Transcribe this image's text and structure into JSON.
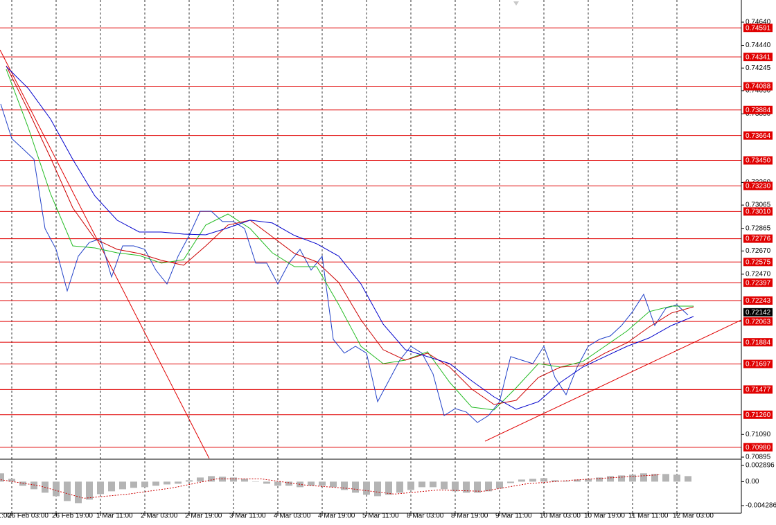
{
  "chart_data": [
    {
      "type": "line",
      "categories": [
        "1:00",
        "26 Feb 03:00",
        "26 Feb 19:00",
        "1 Mar 11:00",
        "2 Mar 03:00",
        "2 Mar 19:00",
        "3 Mar 11:00",
        "4 Mar 03:00",
        "4 Mar 19:00",
        "5 Mar 11:00",
        "8 Mar 03:00",
        "8 Mar 19:00",
        "9 Mar 11:00",
        "10 Mar 03:00",
        "10 Mar 19:00",
        "11 Mar 11:00",
        "12 Mar 03:00"
      ],
      "series": [
        {
          "color": "#2040c8",
          "values": [
            [
              null,
              null,
              0.73936,
              0.73638
            ],
            [
              0.73549,
              0.73459,
              0.72863,
              0.72684
            ],
            [
              0.72326,
              0.72625,
              0.72744,
              0.72774
            ],
            [
              0.72446,
              0.72714,
              0.72714,
              0.72684
            ],
            [
              0.72505,
              0.72386,
              0.72625,
              0.72803
            ],
            [
              0.73012,
              0.73012,
              0.72923,
              0.72923
            ],
            [
              0.72863,
              0.72565,
              0.72565,
              0.72386
            ],
            [
              0.72565,
              0.72684,
              0.72505,
              0.72625
            ],
            [
              0.71909,
              0.7179,
              0.71849,
              0.7179
            ],
            [
              0.71372,
              0.71551,
              0.7173,
              0.71849
            ],
            [
              0.7179,
              0.71611,
              0.71253,
              0.71313
            ],
            [
              0.71283,
              0.71193,
              0.71253,
              0.71372
            ],
            [
              0.7176,
              0.7173,
              0.717,
              0.71849
            ],
            [
              0.71581,
              0.71432,
              0.7167,
              0.71849
            ],
            [
              0.71909,
              0.71939,
              0.72028,
              0.72148
            ],
            [
              0.72297,
              0.72028,
              0.72177,
              0.72207
            ],
            [
              0.72118,
              null,
              null,
              null
            ]
          ]
        },
        {
          "color": "#22bb22",
          "values": [
            [
              null,
              0.74235
            ],
            [
              0.73728,
              0.73161
            ],
            [
              0.72714,
              0.72696
            ],
            [
              0.72654,
              0.72631
            ],
            [
              0.72565,
              0.72595
            ],
            [
              0.72893,
              0.72988
            ],
            [
              0.72863,
              0.72654
            ],
            [
              0.72535,
              0.72535
            ],
            [
              0.72207,
              0.71849
            ],
            [
              0.717,
              0.7173
            ],
            [
              0.71802,
              0.71539
            ],
            [
              0.71325,
              0.71301
            ],
            [
              0.71492,
              0.717
            ],
            [
              0.7167,
              0.71718
            ],
            [
              0.71849,
              0.71981
            ],
            [
              0.72148,
              0.72195
            ],
            [
              0.72195,
              null
            ]
          ]
        },
        {
          "color": "#cc0000",
          "values": [
            [
              null,
              0.74264
            ],
            [
              0.73877,
              0.73471
            ],
            [
              0.73042,
              0.72774
            ],
            [
              0.72684,
              0.72648
            ],
            [
              0.72589,
              0.72547
            ],
            [
              0.72714,
              0.72893
            ],
            [
              0.72935,
              0.72792
            ],
            [
              0.72648,
              0.72577
            ],
            [
              0.72398,
              0.72076
            ],
            [
              0.7182,
              0.7173
            ],
            [
              0.7179,
              0.7167
            ],
            [
              0.7148,
              0.71348
            ],
            [
              0.71384,
              0.71581
            ],
            [
              0.7167,
              0.71682
            ],
            [
              0.7179,
              0.71879
            ],
            [
              0.72016,
              0.72136
            ],
            [
              0.72189,
              null
            ]
          ]
        },
        {
          "color": "#0000cc",
          "values": [
            [
              null,
              0.74258
            ],
            [
              0.74068,
              0.73805
            ],
            [
              0.73459,
              0.73143
            ],
            [
              0.72935,
              0.72833
            ],
            [
              0.72833,
              0.72815
            ],
            [
              0.72809,
              0.72869
            ],
            [
              0.72935,
              0.72911
            ],
            [
              0.72803,
              0.72732
            ],
            [
              0.72625,
              0.72386
            ],
            [
              0.7204,
              0.7182
            ],
            [
              0.7176,
              0.717
            ],
            [
              0.71551,
              0.71414
            ],
            [
              0.71307,
              0.71372
            ],
            [
              0.71539,
              0.7167
            ],
            [
              0.7176,
              0.71849
            ],
            [
              0.71921,
              0.72028
            ],
            [
              0.72106,
              null
            ]
          ]
        }
      ],
      "ylim": [
        0.70883,
        0.74801
      ],
      "yticks": [
        {
          "value": 0.7464,
          "label": "0.74640"
        },
        {
          "value": 0.7444,
          "label": "0.74440"
        },
        0.74245,
        {
          "value": 0.7405,
          "label": "0.74050"
        },
        {
          "value": 0.7385,
          "label": "0.73850"
        },
        {
          "value": 0.7326,
          "label": "0.73260"
        },
        0.73065,
        0.72865,
        {
          "value": 0.7267,
          "label": "0.72670"
        },
        {
          "value": 0.7247,
          "label": "0.72470"
        },
        {
          "value": 0.7109,
          "label": "0.71090"
        },
        0.70895
      ],
      "levels": [
        0.74591,
        0.74341,
        0.74088,
        0.73884,
        0.73664,
        {
          "value": 0.7345,
          "label": "0.73450"
        },
        {
          "value": 0.7323,
          "label": "0.73230"
        },
        {
          "value": 0.7301,
          "label": "0.73010"
        },
        0.72776,
        0.72575,
        0.72397,
        0.72243,
        0.72063,
        0.71884,
        0.71697,
        0.71477,
        {
          "value": 0.7126,
          "label": "0.71260"
        },
        {
          "value": 0.7098,
          "label": "0.70980"
        }
      ],
      "level_color": "#e00000",
      "last_price": 0.72142,
      "last_price_color": "#000000",
      "grid": true
    },
    {
      "type": "bar",
      "color": "#b4b4b4",
      "values": [
        [
          null,
          null,
          0.00149,
          0.0005
        ],
        [
          -0.00074,
          -0.00136,
          -0.00198,
          -0.0026
        ],
        [
          -0.00347,
          -0.00384,
          -0.00322,
          -0.00223
        ],
        [
          -0.00173,
          -0.00136,
          -0.00111,
          -0.00099
        ],
        [
          -0.00074,
          -0.0005,
          -0.00037,
          0.00025
        ],
        [
          0.00074,
          0.00099,
          0.00087,
          0.00074
        ],
        [
          0.0005,
          0,
          -0.00037,
          -0.00074
        ],
        [
          -0.00074,
          -0.00099,
          -0.00074,
          -0.00074
        ],
        [
          -0.00099,
          -0.00149,
          -0.00198,
          -0.00235
        ],
        [
          -0.0026,
          -0.00235,
          -0.00198,
          -0.00149
        ],
        [
          -0.00099,
          -0.00099,
          -0.00136,
          -0.00173
        ],
        [
          -0.00198,
          -0.00198,
          -0.00173,
          -0.00124
        ],
        [
          -0.00025,
          0.00037,
          0.0005,
          0.00062
        ],
        [
          0.00025,
          0.00012,
          0.00037,
          0.0005
        ],
        [
          0.00074,
          0.00099,
          0.00111,
          0.00124
        ],
        [
          0.00149,
          0.00136,
          0.00136,
          0.00124
        ],
        [
          0.00099,
          null,
          null,
          null
        ]
      ],
      "signal": {
        "color": "#cc0000",
        "values": [
          0.0005,
          -0.00074,
          -0.00297,
          -0.00223,
          -0.00111,
          0.0005,
          0.0005,
          -0.00062,
          -0.00124,
          -0.00223,
          -0.00149,
          -0.00173,
          -0.00037,
          0.00025,
          0.00074,
          0.00124,
          null
        ]
      },
      "ylim": [
        -0.005524,
        0.003763
      ],
      "yticks": [
        0.002896,
        {
          "value": 0,
          "label": "0.00"
        },
        -0.004286
      ]
    }
  ]
}
